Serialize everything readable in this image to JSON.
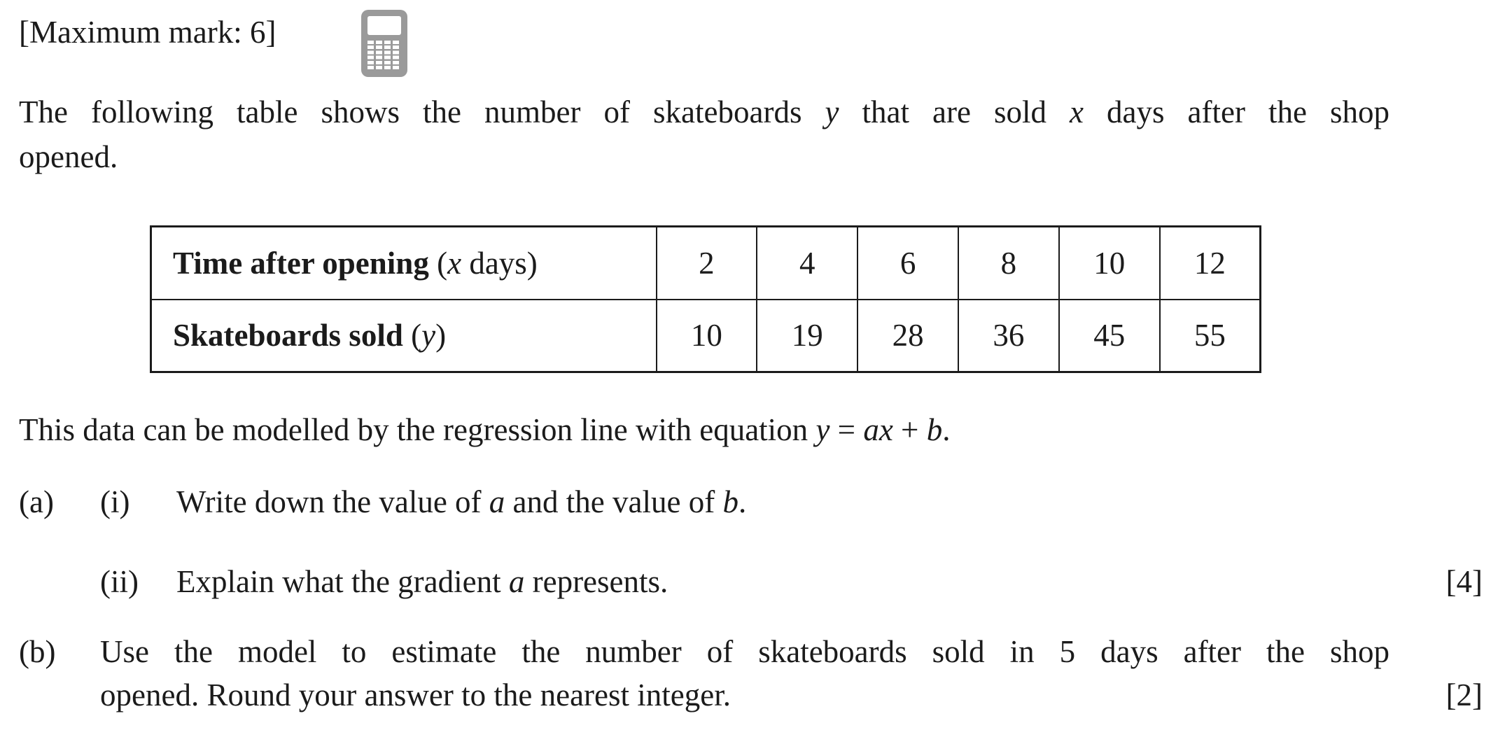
{
  "colors": {
    "text": "#1b1b1b",
    "background": "#ffffff",
    "calculator_icon": "#9a9a9a",
    "table_border": "#1b1b1b"
  },
  "header": {
    "maximum_mark": "[Maximum mark: 6]"
  },
  "intro": {
    "line1": {
      "t1": "The following table shows the number of skateboards ",
      "v1": "y",
      "t2": " that are sold ",
      "v2": "x",
      "t3": " days after the shop"
    },
    "line2": "opened."
  },
  "table": {
    "rows": [
      {
        "label": "Time after opening",
        "pre": " (",
        "var": "x",
        "post": " days)",
        "values": [
          "2",
          "4",
          "6",
          "8",
          "10",
          "12"
        ]
      },
      {
        "label": "Skateboards sold",
        "pre": " (",
        "var": "y",
        "post": ")",
        "values": [
          "10",
          "19",
          "28",
          "36",
          "45",
          "55"
        ]
      }
    ]
  },
  "model": {
    "t1": "This data can be modelled by the regression line with equation ",
    "v1": "y",
    "t2": " = ",
    "v2": "ax",
    "t3": " + ",
    "v3": "b",
    "t4": "."
  },
  "parts": {
    "a": {
      "num": "(a)",
      "i": {
        "num": "(i)",
        "t1": "Write down the value of ",
        "v1": "a",
        "t2": " and the value of ",
        "v2": "b",
        "t3": "."
      },
      "ii": {
        "num": "(ii)",
        "t1": "Explain what the gradient ",
        "v1": "a",
        "t2": " represents.",
        "mark": "[4]"
      }
    },
    "b": {
      "num": "(b)",
      "line1": "Use the model to estimate the number of skateboards sold in 5 days after the shop",
      "line2": "opened. Round your answer to the nearest integer.",
      "mark": "[2]"
    }
  }
}
